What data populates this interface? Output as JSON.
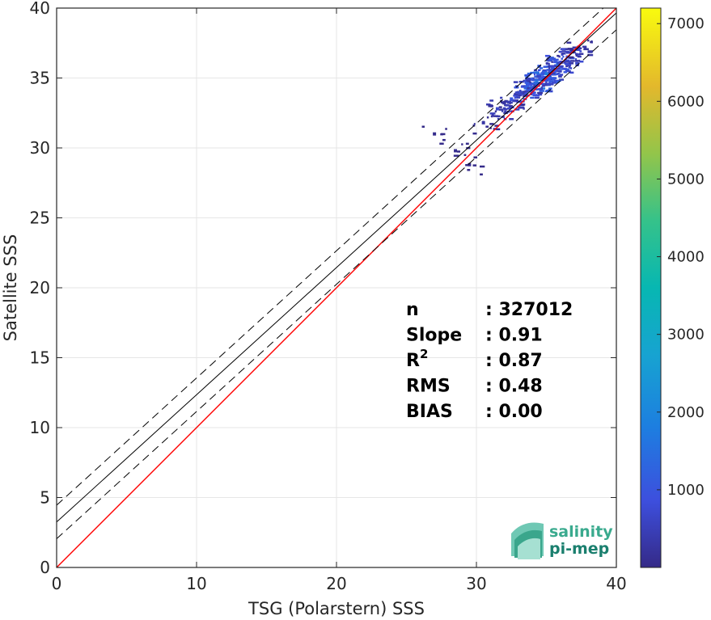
{
  "chart_data": {
    "type": "heatmap",
    "xlabel": "TSG (Polarstern) SSS",
    "ylabel": "Satellite SSS",
    "xlim": [
      0,
      40
    ],
    "ylim": [
      0,
      40
    ],
    "x_ticks": [
      "0",
      "10",
      "20",
      "30",
      "40"
    ],
    "y_ticks": [
      "0",
      "5",
      "10",
      "15",
      "20",
      "25",
      "30",
      "35",
      "40"
    ],
    "grid": true,
    "colorbar": {
      "range": [
        0,
        7200
      ],
      "ticks": [
        "1000",
        "2000",
        "3000",
        "4000",
        "5000",
        "6000",
        "7000"
      ],
      "colormap": "parula"
    },
    "reference_lines": [
      {
        "type": "identity",
        "slope": 1,
        "intercept": 0,
        "color": "#ff0000",
        "style": "solid"
      },
      {
        "type": "regression",
        "slope": 0.91,
        "intercept": 3.25,
        "color": "#000000",
        "style": "solid"
      },
      {
        "type": "upper-bound",
        "slope": 0.91,
        "intercept": 4.45,
        "color": "#000000",
        "style": "dashed"
      },
      {
        "type": "lower-bound",
        "slope": 0.91,
        "intercept": 2.05,
        "color": "#000000",
        "style": "dashed"
      }
    ],
    "density_points": [
      {
        "x": 27.0,
        "y": 31.0,
        "count": 60
      },
      {
        "x": 28.5,
        "y": 29.8,
        "count": 80
      },
      {
        "x": 29.5,
        "y": 28.8,
        "count": 60
      },
      {
        "x": 30.5,
        "y": 31.8,
        "count": 300
      },
      {
        "x": 31.5,
        "y": 32.8,
        "count": 700
      },
      {
        "x": 32.5,
        "y": 33.5,
        "count": 1000
      },
      {
        "x": 33.5,
        "y": 34.3,
        "count": 1500
      },
      {
        "x": 34.3,
        "y": 34.8,
        "count": 2200
      },
      {
        "x": 35.0,
        "y": 35.3,
        "count": 1800
      },
      {
        "x": 35.8,
        "y": 36.0,
        "count": 1500
      },
      {
        "x": 36.5,
        "y": 36.5,
        "count": 1000
      },
      {
        "x": 37.3,
        "y": 37.2,
        "count": 500
      }
    ],
    "stats": [
      {
        "label": "n",
        "value": ": 327012"
      },
      {
        "label": "Slope",
        "value": ": 0.91"
      },
      {
        "label": "R",
        "sup": "2",
        "value": ": 0.87"
      },
      {
        "label": "RMS",
        "value": ": 0.48"
      },
      {
        "label": "BIAS",
        "value": ": 0.00"
      }
    ]
  },
  "logo": {
    "line1": "salinity",
    "line2": "pi-mep"
  }
}
